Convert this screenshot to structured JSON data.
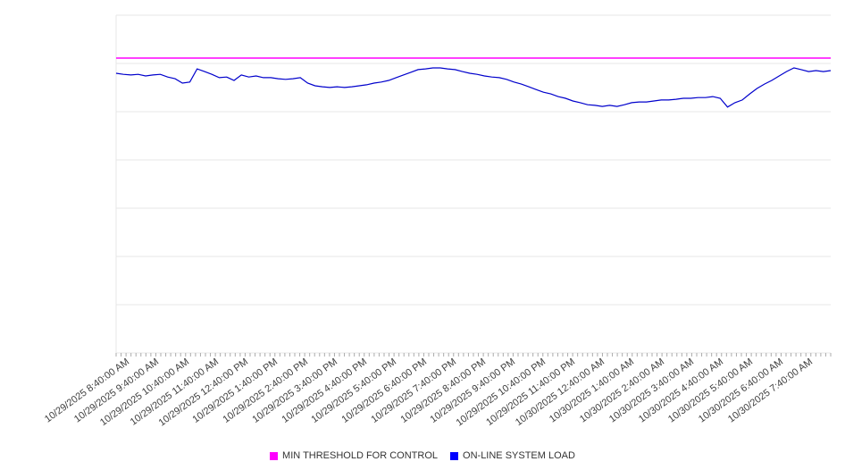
{
  "chart_data": {
    "type": "line",
    "title": "",
    "grid": "horizontal",
    "legend_position": "bottom-center",
    "ylim": [
      0,
      100
    ],
    "x_tick_labels": [
      "10/29/2025 8:40:00 AM",
      "10/29/2025 9:40:00 AM",
      "10/29/2025 10:40:00 AM",
      "10/29/2025 11:40:00 AM",
      "10/29/2025 12:40:00 PM",
      "10/29/2025 1:40:00 PM",
      "10/29/2025 2:40:00 PM",
      "10/29/2025 3:40:00 PM",
      "10/29/2025 4:40:00 PM",
      "10/29/2025 5:40:00 PM",
      "10/29/2025 6:40:00 PM",
      "10/29/2025 7:40:00 PM",
      "10/29/2025 8:40:00 PM",
      "10/29/2025 9:40:00 PM",
      "10/29/2025 10:40:00 PM",
      "10/29/2025 11:40:00 PM",
      "10/30/2025 12:40:00 AM",
      "10/30/2025 1:40:00 AM",
      "10/30/2025 2:40:00 AM",
      "10/30/2025 3:40:00 AM",
      "10/30/2025 4:40:00 AM",
      "10/30/2025 5:40:00 AM",
      "10/30/2025 6:40:00 AM",
      "10/30/2025 7:40:00 AM"
    ],
    "series": [
      {
        "name": "MIN THRESHOLD FOR CONTROL",
        "type": "constant",
        "color": "#ff00ff",
        "value": 87.3
      },
      {
        "name": "ON-LINE SYSTEM LOAD",
        "type": "line",
        "color": "#0000cc",
        "values": [
          82.8,
          82.5,
          82.3,
          82.5,
          82.0,
          82.3,
          82.5,
          81.7,
          81.2,
          79.9,
          80.2,
          84.1,
          83.3,
          82.5,
          81.5,
          81.7,
          80.7,
          82.3,
          81.7,
          82.0,
          81.5,
          81.5,
          81.2,
          81.0,
          81.2,
          81.5,
          79.9,
          79.1,
          78.8,
          78.6,
          78.8,
          78.6,
          78.8,
          79.1,
          79.4,
          79.9,
          80.2,
          80.7,
          81.5,
          82.3,
          83.1,
          83.9,
          84.1,
          84.4,
          84.4,
          84.1,
          83.9,
          83.3,
          82.8,
          82.5,
          82.0,
          81.7,
          81.5,
          81.0,
          80.2,
          79.6,
          78.8,
          78.0,
          77.2,
          76.7,
          75.9,
          75.4,
          74.6,
          74.1,
          73.5,
          73.3,
          73.0,
          73.3,
          73.0,
          73.5,
          74.1,
          74.3,
          74.3,
          74.6,
          74.9,
          74.9,
          75.1,
          75.4,
          75.4,
          75.6,
          75.6,
          75.9,
          75.4,
          72.8,
          74.1,
          74.9,
          76.7,
          78.3,
          79.6,
          80.7,
          82.0,
          83.3,
          84.4,
          83.9,
          83.3,
          83.6,
          83.3,
          83.6
        ]
      }
    ]
  },
  "legend": {
    "items": [
      {
        "label": "MIN THRESHOLD FOR CONTROL",
        "color": "#ff00ff"
      },
      {
        "label": "ON-LINE SYSTEM LOAD",
        "color": "#0000ff"
      }
    ]
  }
}
